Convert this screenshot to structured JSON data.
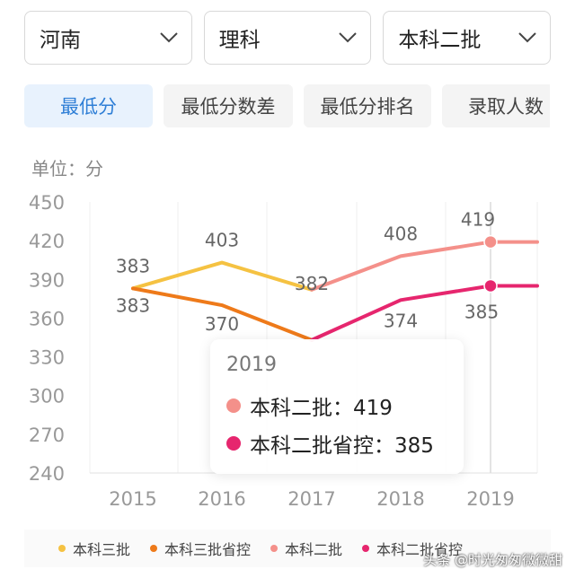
{
  "filters": [
    {
      "value": "河南"
    },
    {
      "value": "理科"
    },
    {
      "value": "本科二批"
    }
  ],
  "tabs": [
    "最低分",
    "最低分数差",
    "最低分排名",
    "录取人数"
  ],
  "active_tab": 0,
  "unit_label": "单位：分",
  "tooltip": {
    "year": "2019",
    "rows": [
      {
        "label": "本科二批：419",
        "color": "#f4908a"
      },
      {
        "label": "本科二批省控：385",
        "color": "#e6266e"
      }
    ]
  },
  "watermark": "头条 @时光匆匆微微甜",
  "chart_data": {
    "type": "line",
    "x": [
      "2015",
      "2016",
      "2017",
      "2018",
      "2019"
    ],
    "ylim": [
      240,
      450
    ],
    "yticks": [
      240,
      270,
      300,
      330,
      360,
      390,
      420,
      450
    ],
    "grid": "vertical",
    "legend_position": "bottom",
    "series": [
      {
        "name": "本科三批",
        "color": "#f5c242",
        "values": [
          383,
          403,
          382,
          null,
          null
        ],
        "labels": [
          "383",
          "403",
          "382",
          null,
          null
        ]
      },
      {
        "name": "本科三批省控",
        "color": "#ee7a1a",
        "values": [
          383,
          370,
          343,
          null,
          null
        ],
        "labels": [
          "383",
          "370",
          null,
          null,
          null
        ]
      },
      {
        "name": "本科二批",
        "color": "#f4908a",
        "values": [
          null,
          null,
          382,
          408,
          419
        ],
        "labels": [
          null,
          null,
          null,
          "408",
          "419"
        ]
      },
      {
        "name": "本科二批省控",
        "color": "#e6266e",
        "values": [
          null,
          null,
          343,
          374,
          385
        ],
        "labels": [
          null,
          null,
          null,
          "374",
          "385"
        ]
      }
    ],
    "highlight_x": "2019"
  }
}
